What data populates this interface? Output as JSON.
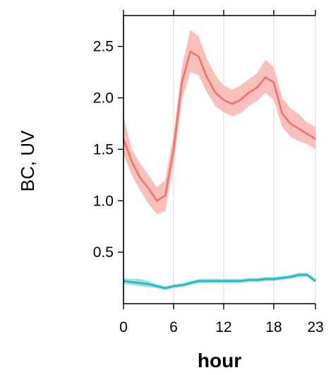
{
  "chart_data": {
    "type": "line",
    "title": "",
    "xlabel": "hour",
    "ylabel": "BC, UV",
    "xlim": [
      0,
      23
    ],
    "ylim": [
      0,
      2.8
    ],
    "x_ticks": [
      {
        "value": 0,
        "label": "0"
      },
      {
        "value": 6,
        "label": "6"
      },
      {
        "value": 12,
        "label": "12"
      },
      {
        "value": 18,
        "label": "18"
      },
      {
        "value": 23,
        "label": "23"
      }
    ],
    "y_ticks": [
      {
        "value": 0.5,
        "label": "0.5"
      },
      {
        "value": 1.0,
        "label": "1.0"
      },
      {
        "value": 1.5,
        "label": "1.5"
      },
      {
        "value": 2.0,
        "label": "2.0"
      },
      {
        "value": 2.5,
        "label": "2.5"
      }
    ],
    "grid": true,
    "x": [
      0,
      1,
      2,
      3,
      4,
      5,
      6,
      7,
      8,
      9,
      10,
      11,
      12,
      13,
      14,
      15,
      16,
      17,
      18,
      19,
      20,
      21,
      22,
      23
    ],
    "series": [
      {
        "color": "#f0736a",
        "band_color": "#f8b4ae",
        "values": [
          1.6,
          1.38,
          1.22,
          1.12,
          1.0,
          1.05,
          1.5,
          2.15,
          2.45,
          2.4,
          2.2,
          2.05,
          1.98,
          1.94,
          1.98,
          2.05,
          2.1,
          2.2,
          2.15,
          1.85,
          1.75,
          1.7,
          1.65,
          1.6
        ],
        "lower": [
          1.45,
          1.25,
          1.1,
          0.97,
          0.87,
          0.9,
          1.35,
          1.98,
          2.25,
          2.22,
          2.05,
          1.92,
          1.86,
          1.82,
          1.85,
          1.92,
          1.97,
          2.05,
          1.98,
          1.72,
          1.62,
          1.58,
          1.55,
          1.5
        ],
        "upper": [
          1.82,
          1.5,
          1.36,
          1.25,
          1.13,
          1.2,
          1.65,
          2.3,
          2.66,
          2.6,
          2.38,
          2.22,
          2.12,
          2.08,
          2.12,
          2.18,
          2.24,
          2.37,
          2.3,
          2.0,
          1.9,
          1.84,
          1.76,
          1.72
        ]
      },
      {
        "color": "#1fb8bd",
        "band_color": "#8fd9dc",
        "values": [
          0.22,
          0.21,
          0.2,
          0.19,
          0.17,
          0.15,
          0.17,
          0.18,
          0.2,
          0.22,
          0.22,
          0.22,
          0.22,
          0.22,
          0.22,
          0.23,
          0.23,
          0.24,
          0.24,
          0.25,
          0.26,
          0.28,
          0.28,
          0.22
        ],
        "lower": [
          0.19,
          0.18,
          0.17,
          0.16,
          0.15,
          0.13,
          0.15,
          0.16,
          0.18,
          0.2,
          0.2,
          0.2,
          0.2,
          0.2,
          0.2,
          0.21,
          0.21,
          0.22,
          0.22,
          0.23,
          0.24,
          0.26,
          0.26,
          0.2
        ],
        "upper": [
          0.25,
          0.24,
          0.24,
          0.22,
          0.19,
          0.17,
          0.19,
          0.2,
          0.22,
          0.24,
          0.24,
          0.24,
          0.24,
          0.24,
          0.24,
          0.25,
          0.25,
          0.26,
          0.26,
          0.27,
          0.28,
          0.3,
          0.3,
          0.24
        ]
      }
    ]
  }
}
